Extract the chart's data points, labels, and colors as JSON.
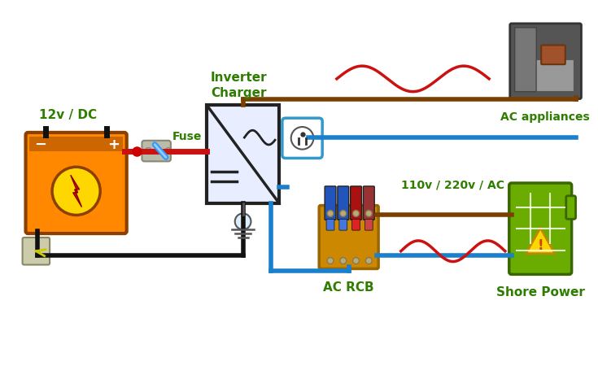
{
  "bg_color": "#ffffff",
  "wire_brown": "#7B3F00",
  "wire_blue": "#1A7FCC",
  "wire_red": "#CC1111",
  "wire_black": "#111111",
  "green_text": "#2E7D00",
  "battery_orange": "#FF8800",
  "battery_dark": "#8B4000",
  "battery_top": "#CC6600",
  "shore_green": "#6AAD00",
  "shore_dark": "#3A6600",
  "rcb_gold": "#CC8800",
  "rcb_dark": "#996600",
  "label_12v": "12v / DC",
  "label_fuse": "Fuse",
  "label_inverter": "Inverter\nCharger",
  "label_ac_app": "AC appliances",
  "label_ac_rcb": "AC RCB",
  "label_shore": "Shore Power",
  "label_110v": "110v / 220v / AC"
}
